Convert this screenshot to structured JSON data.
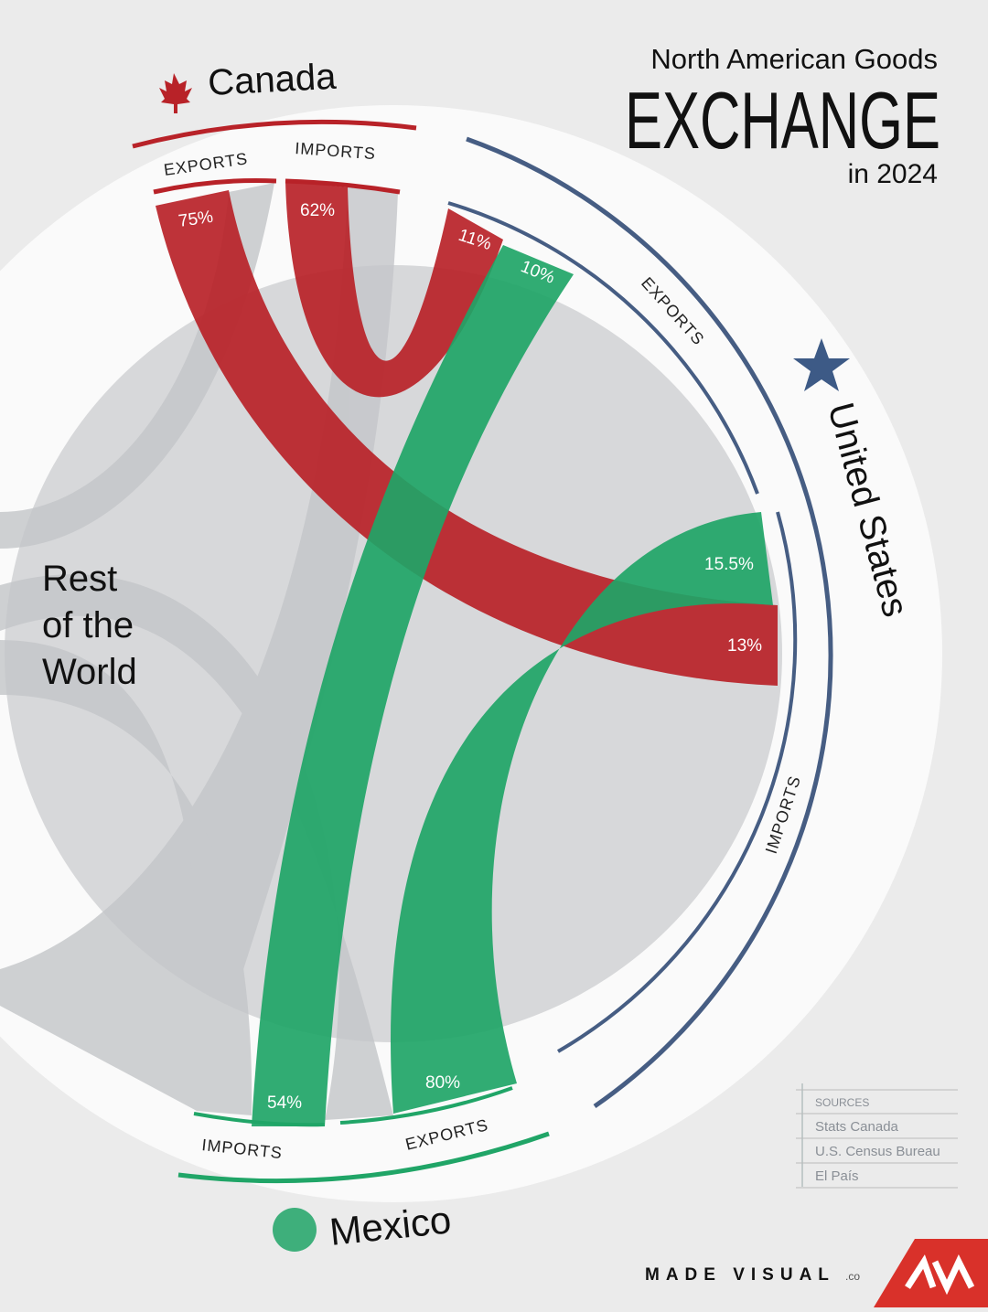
{
  "title": {
    "line1": "North American Goods",
    "line2": "EXCHANGE",
    "line3": "in 2024"
  },
  "regions": {
    "canada": {
      "name": "Canada",
      "exports": "EXPORTS",
      "imports": "IMPORTS"
    },
    "united_states": {
      "name": "United States",
      "exports": "EXPORTS",
      "imports": "IMPORTS"
    },
    "mexico": {
      "name": "Mexico",
      "exports": "EXPORTS",
      "imports": "IMPORTS"
    },
    "world": {
      "lines": [
        "Rest",
        "of the",
        "World"
      ]
    }
  },
  "flows": [
    {
      "label": "75%"
    },
    {
      "label": "62%"
    },
    {
      "label": "11%"
    },
    {
      "label": "10%"
    },
    {
      "label": "15.5%"
    },
    {
      "label": "13%"
    },
    {
      "label": "54%"
    },
    {
      "label": "80%"
    }
  ],
  "sources": {
    "heading": "SOURCES",
    "items": [
      "Stats Canada",
      "U.S. Census Bureau",
      "El País"
    ]
  },
  "brand": {
    "name": "MADE VISUAL",
    "suffix": ".co"
  }
}
